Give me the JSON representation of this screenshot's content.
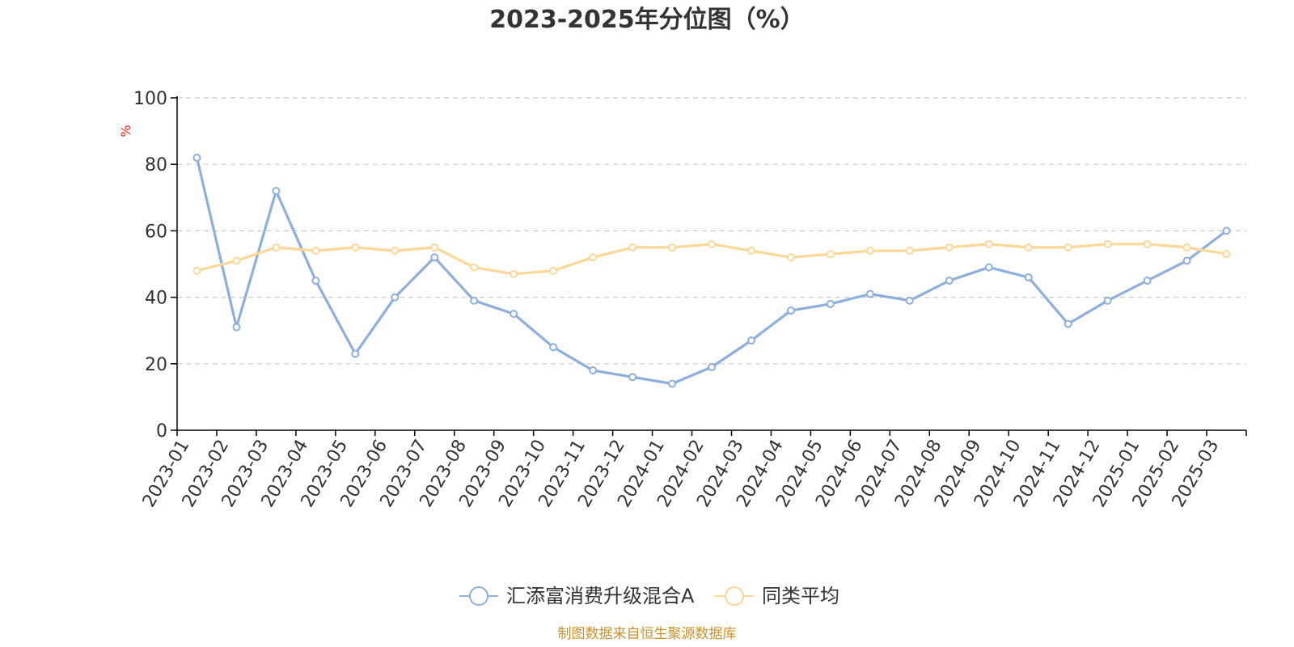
{
  "chart_data": {
    "type": "line",
    "title": "2023-2025年分位图（%）",
    "ylabel": "%",
    "xlabel": "",
    "ylim": [
      0,
      100
    ],
    "yticks": [
      0,
      20,
      40,
      60,
      80,
      100
    ],
    "grid": true,
    "legend_position": "bottom",
    "categories": [
      "2023-01",
      "2023-02",
      "2023-03",
      "2023-04",
      "2023-05",
      "2023-06",
      "2023-07",
      "2023-08",
      "2023-09",
      "2023-10",
      "2023-11",
      "2023-12",
      "2024-01",
      "2024-02",
      "2024-03",
      "2024-04",
      "2024-05",
      "2024-06",
      "2024-07",
      "2024-08",
      "2024-09",
      "2024-10",
      "2024-11",
      "2024-12",
      "2025-01",
      "2025-02",
      "2025-03"
    ],
    "series": [
      {
        "name": "汇添富消费升级混合A",
        "color": "#8eaedb",
        "values": [
          82,
          31,
          72,
          45,
          23,
          40,
          52,
          39,
          35,
          25,
          18,
          16,
          14,
          19,
          27,
          36,
          38,
          41,
          39,
          45,
          49,
          46,
          32,
          39,
          45,
          51,
          60
        ]
      },
      {
        "name": "同类平均",
        "color": "#fcd898",
        "values": [
          48,
          51,
          55,
          54,
          55,
          54,
          55,
          49,
          47,
          48,
          52,
          55,
          55,
          56,
          54,
          52,
          53,
          54,
          54,
          55,
          56,
          55,
          55,
          56,
          56,
          55,
          53
        ]
      }
    ],
    "source": "制图数据来自恒生聚源数据库",
    "unit_color": "#e8251e",
    "source_color": "#c8922e"
  }
}
